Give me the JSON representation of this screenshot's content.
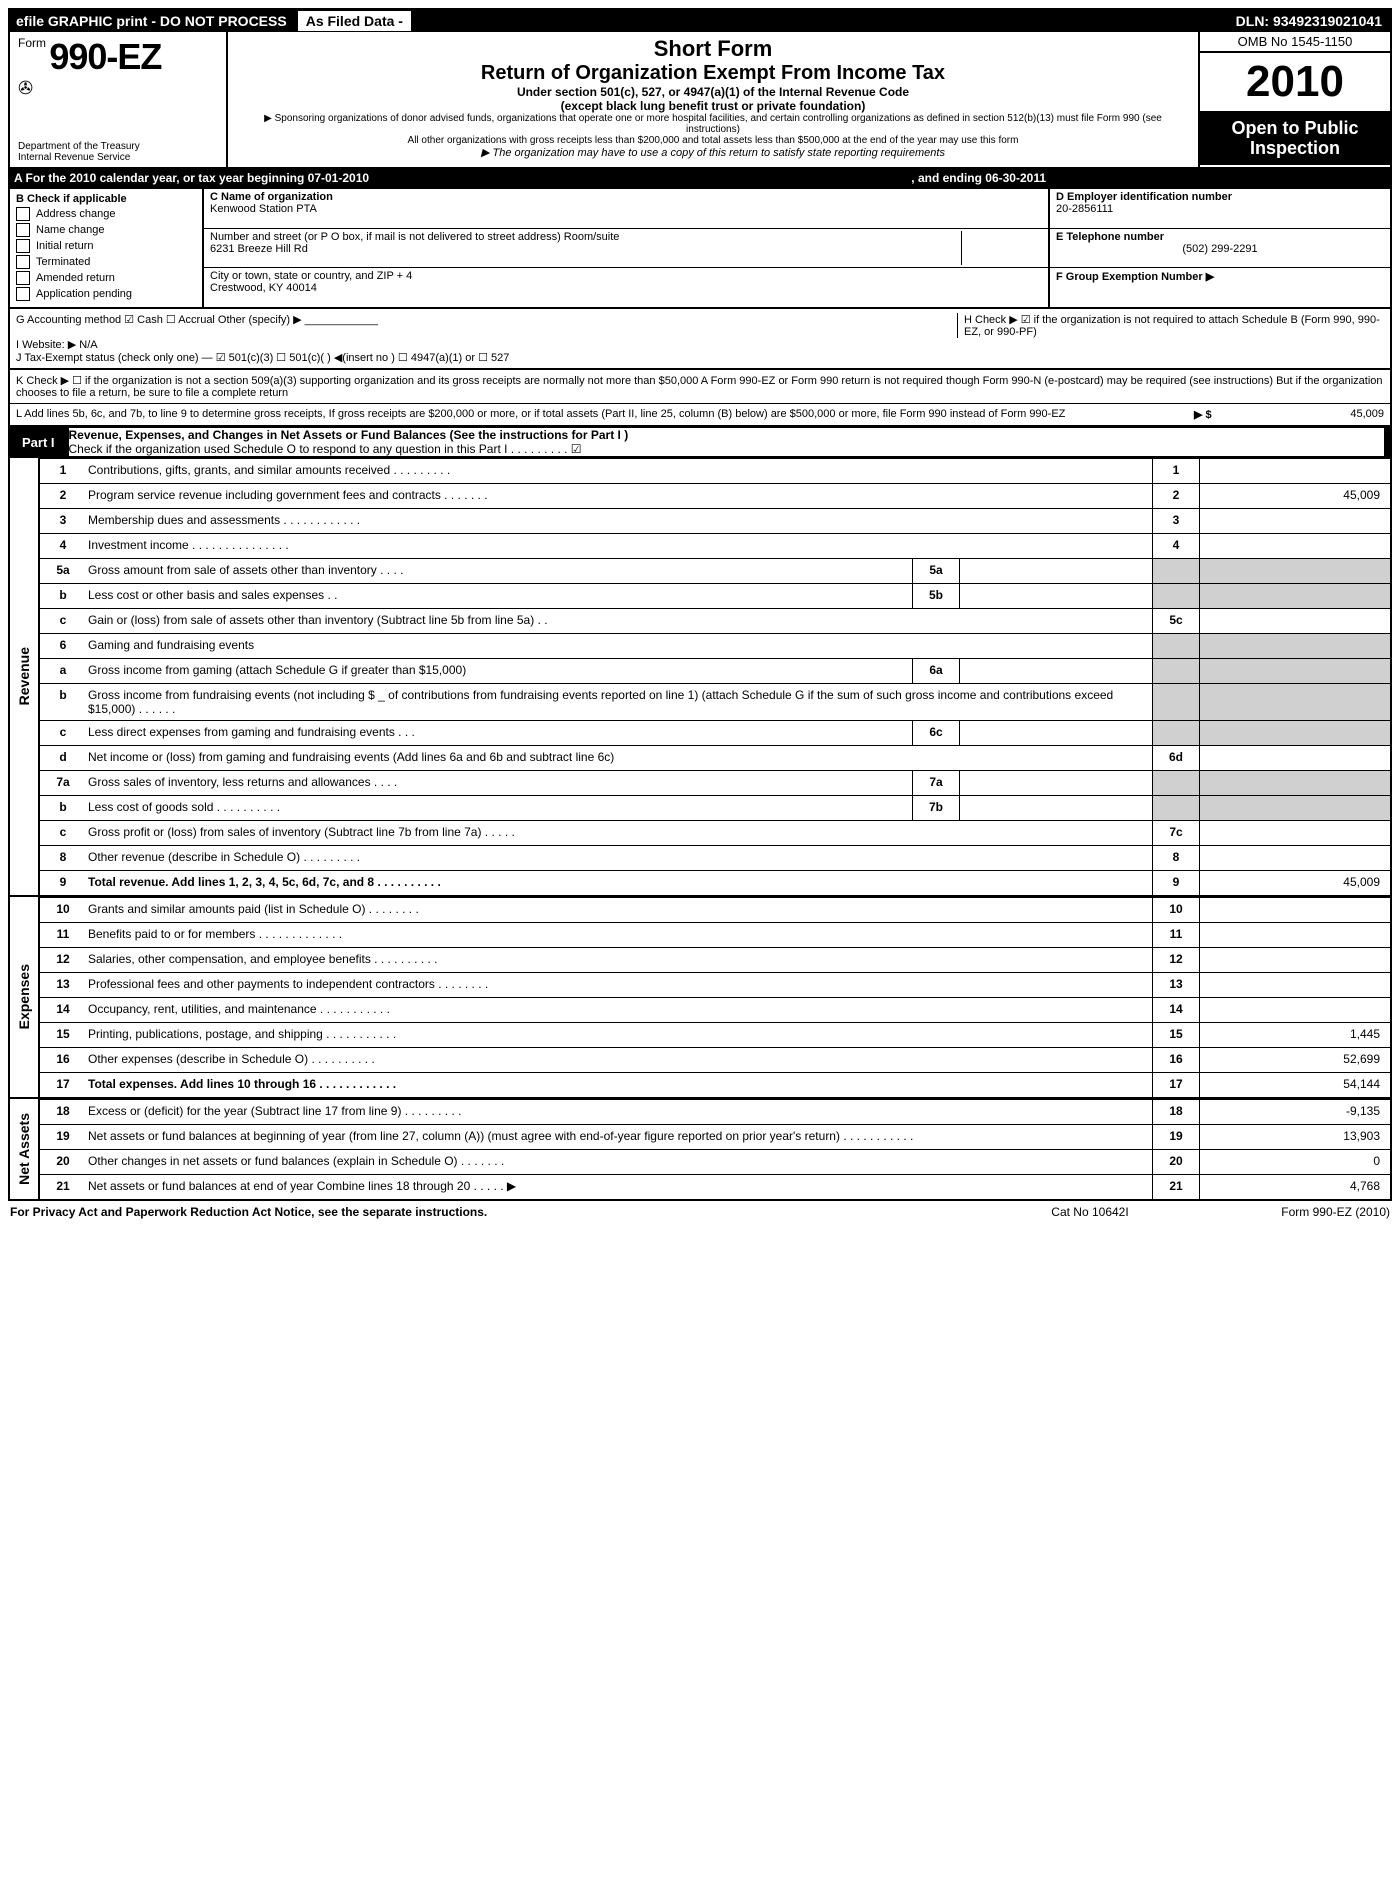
{
  "topbar": {
    "left": "efile GRAPHIC print - DO NOT PROCESS",
    "mid": "As Filed Data -",
    "dln": "DLN: 93492319021041"
  },
  "header": {
    "form_prefix": "Form",
    "form_number": "990-EZ",
    "dept1": "Department of the Treasury",
    "dept2": "Internal Revenue Service",
    "shortform": "Short Form",
    "title": "Return of Organization Exempt From Income Tax",
    "sub1": "Under section 501(c), 527, or 4947(a)(1) of the Internal Revenue Code",
    "sub2": "(except black lung benefit trust or private foundation)",
    "note1": "▶ Sponsoring organizations of donor advised funds, organizations that operate one or more hospital facilities, and certain controlling organizations as defined in section 512(b)(13) must file Form 990 (see instructions)",
    "note2": "All other organizations with gross receipts less than $200,000 and total assets less than $500,000 at the end of the year may use this form",
    "note3": "▶ The organization may have to use a copy of this return to satisfy state reporting requirements",
    "omb": "OMB No 1545-1150",
    "year": "2010",
    "open": "Open to Public Inspection"
  },
  "lineA": {
    "text_l": "A  For the 2010 calendar year, or tax year beginning 07-01-2010",
    "text_r": ", and ending 06-30-2011"
  },
  "blockB": {
    "heading": "B  Check if applicable",
    "opts": [
      "Address change",
      "Name change",
      "Initial return",
      "Terminated",
      "Amended return",
      "Application pending"
    ],
    "c_label": "C Name of organization",
    "c_name": "Kenwood Station PTA",
    "addr_label": "Number and street (or P  O  box, if mail is not delivered to street address) Room/suite",
    "addr": "6231 Breeze Hill Rd",
    "city_label": "City or town, state or country, and ZIP + 4",
    "city": "Crestwood, KY  40014",
    "d_label": "D Employer identification number",
    "d_val": "20-2856111",
    "e_label": "E Telephone number",
    "e_val": "(502) 299-2291",
    "f_label": "F Group Exemption Number ▶"
  },
  "misc": {
    "g": "G Accounting method   ☑ Cash  ☐ Accrual  Other (specify) ▶ ____________",
    "i": "I Website: ▶  N/A",
    "h": "H  Check ▶ ☑ if the organization is not required to attach Schedule B (Form 990, 990-EZ, or 990-PF)",
    "j": "J Tax-Exempt status (check only one) — ☑ 501(c)(3)  ☐ 501(c)(  ) ◀(insert no ) ☐ 4947(a)(1) or ☐ 527",
    "k": "K Check ▶ ☐  if the organization is not a section 509(a)(3) supporting organization and its gross receipts are normally not more than $50,000  A Form 990-EZ or Form 990 return is not required though Form 990-N (e-postcard) may be required (see instructions)  But if the organization chooses to file a return, be sure to file a complete return",
    "l": "L Add lines 5b, 6c, and 7b, to line 9 to determine gross receipts, If gross receipts are $200,000 or more, or if total assets (Part II, line 25, column (B) below) are $500,000 or more, file Form 990 instead of Form 990-EZ",
    "l_amt_label": "▶ $",
    "l_amt": "45,009"
  },
  "partI": {
    "label": "Part I",
    "title": "Revenue, Expenses, and Changes in Net Assets or Fund Balances (See the instructions for Part I )",
    "check_note": "Check if the organization used Schedule O to respond to any question in this Part I    .    .    .    .    .    .    .    .    .   ☑"
  },
  "sections": {
    "revenue": "Revenue",
    "expenses": "Expenses",
    "netassets": "Net Assets"
  },
  "lines": [
    {
      "n": "1",
      "d": "Contributions, gifts, grants, and similar amounts received    .    .    .    .    .    .    .    .    .",
      "rn": "1",
      "rv": ""
    },
    {
      "n": "2",
      "d": "Program service revenue including government fees and contracts    .    .    .    .    .    .    .",
      "rn": "2",
      "rv": "45,009"
    },
    {
      "n": "3",
      "d": "Membership dues and assessments    .    .    .    .    .    .    .    .    .    .    .    .",
      "rn": "3",
      "rv": ""
    },
    {
      "n": "4",
      "d": "Investment income    .    .    .    .    .    .    .    .    .    .    .    .    .    .    .",
      "rn": "4",
      "rv": ""
    },
    {
      "n": "5a",
      "d": "Gross amount from sale of assets other than inventory    .    .    .    .",
      "in": "5a",
      "iv": ""
    },
    {
      "n": "b",
      "d": "Less  cost or other basis and sales expenses    .    .",
      "in": "5b",
      "iv": ""
    },
    {
      "n": "c",
      "d": "Gain or (loss) from sale of assets other than inventory (Subtract line 5b from line 5a)    .    .",
      "rn": "5c",
      "rv": ""
    },
    {
      "n": "6",
      "d": "Gaming and fundraising events"
    },
    {
      "n": "a",
      "d": "Gross income from gaming (attach Schedule G if greater than $15,000)",
      "in": "6a",
      "iv": ""
    },
    {
      "n": "b",
      "d": "Gross income from fundraising events (not including $ _ of contributions from fundraising events reported on line 1) (attach Schedule G if the sum of such gross income and contributions exceed $15,000)    .    .    .    .    .    ."
    },
    {
      "n": "c",
      "d": "Less  direct expenses from gaming and fundraising events    .    .    .",
      "in": "6c",
      "iv": ""
    },
    {
      "n": "d",
      "d": "Net income or (loss) from gaming and fundraising events (Add lines 6a and 6b and subtract line 6c)",
      "rn": "6d",
      "rv": ""
    },
    {
      "n": "7a",
      "d": "Gross sales of inventory, less returns and allowances    .    .    .    .",
      "in": "7a",
      "iv": ""
    },
    {
      "n": "b",
      "d": "Less  cost of goods sold    .    .    .    .    .    .    .    .    .    .",
      "in": "7b",
      "iv": ""
    },
    {
      "n": "c",
      "d": "Gross profit or (loss) from sales of inventory (Subtract line 7b from line 7a)    .    .    .    .    .",
      "rn": "7c",
      "rv": ""
    },
    {
      "n": "8",
      "d": "Other revenue (describe in Schedule O)    .    .    .    .    .    .    .    .    .",
      "rn": "8",
      "rv": ""
    },
    {
      "n": "9",
      "d": "Total revenue. Add lines 1, 2, 3, 4, 5c, 6d, 7c, and 8    .    .    .    .    .    .    .    .    .    .",
      "rn": "9",
      "rv": "45,009",
      "bold": true
    }
  ],
  "exp_lines": [
    {
      "n": "10",
      "d": "Grants and similar amounts paid (list in Schedule O)    .    .    .    .    .    .    .    .",
      "rn": "10",
      "rv": ""
    },
    {
      "n": "11",
      "d": "Benefits paid to or for members    .    .    .    .    .    .    .    .    .    .    .    .    .",
      "rn": "11",
      "rv": ""
    },
    {
      "n": "12",
      "d": "Salaries, other compensation, and employee benefits    .    .    .    .    .    .    .    .    .    .",
      "rn": "12",
      "rv": ""
    },
    {
      "n": "13",
      "d": "Professional fees and other payments to independent contractors    .    .    .    .    .    .    .    .",
      "rn": "13",
      "rv": ""
    },
    {
      "n": "14",
      "d": "Occupancy, rent, utilities, and maintenance    .    .    .    .    .    .    .    .    .    .    .",
      "rn": "14",
      "rv": ""
    },
    {
      "n": "15",
      "d": "Printing, publications, postage, and shipping    .    .    .    .    .    .    .    .    .    .    .",
      "rn": "15",
      "rv": "1,445"
    },
    {
      "n": "16",
      "d": "Other expenses (describe in Schedule O)    .    .    .    .    .    .    .    .    .    .",
      "rn": "16",
      "rv": "52,699"
    },
    {
      "n": "17",
      "d": "Total expenses. Add lines 10 through 16    .    .    .    .    .    .    .    .    .    .    .    .",
      "rn": "17",
      "rv": "54,144",
      "bold": true
    }
  ],
  "na_lines": [
    {
      "n": "18",
      "d": "Excess or (deficit) for the year (Subtract line 17 from line 9)    .    .    .    .    .    .    .    .    .",
      "rn": "18",
      "rv": "-9,135"
    },
    {
      "n": "19",
      "d": "Net assets or fund balances at beginning of year (from line 27, column (A)) (must agree with end-of-year figure reported on prior year's return)    .    .    .    .    .    .    .    .    .    .    .",
      "rn": "19",
      "rv": "13,903"
    },
    {
      "n": "20",
      "d": "Other changes in net assets or fund balances (explain in Schedule O)    .    .    .    .    .    .    .",
      "rn": "20",
      "rv": "0"
    },
    {
      "n": "21",
      "d": "Net assets or fund balances at end of year  Combine lines 18 through 20    .    .    .    .    . ▶",
      "rn": "21",
      "rv": "4,768"
    }
  ],
  "footer": {
    "l": "For Privacy Act and Paperwork Reduction Act Notice, see the separate instructions.",
    "c": "Cat No 10642I",
    "r": "Form 990-EZ (2010)"
  }
}
